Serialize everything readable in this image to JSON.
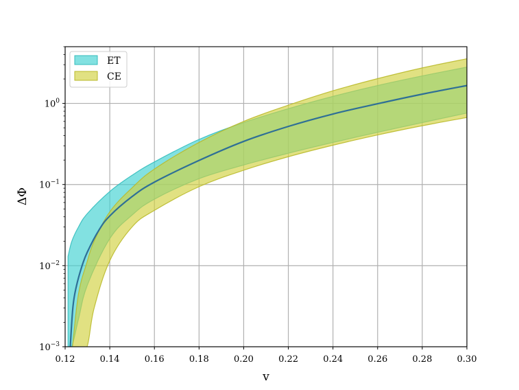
{
  "chart_data": {
    "type": "area",
    "xlabel": "v",
    "ylabel": "ΔΦ",
    "xlim": [
      0.12,
      0.3
    ],
    "ylim": [
      0.001,
      5
    ],
    "yscale": "log",
    "grid": true,
    "legend_position": "top-left",
    "x_ticks": [
      "0.12",
      "0.14",
      "0.16",
      "0.18",
      "0.20",
      "0.22",
      "0.24",
      "0.26",
      "0.28",
      "0.30"
    ],
    "y_ticks": [
      {
        "mant": "10",
        "exp": "−3",
        "value": 0.001
      },
      {
        "mant": "10",
        "exp": "−2",
        "value": 0.01
      },
      {
        "mant": "10",
        "exp": "−1",
        "value": 0.1
      },
      {
        "mant": "10",
        "exp": "0",
        "value": 1
      }
    ],
    "colors": {
      "et_fill": "#3fd1d1",
      "et_edge": "#34bcbc",
      "ce_fill": "#d1d13f",
      "ce_edge": "#b9b92a",
      "central_line": "#2e6f96"
    },
    "series": [
      {
        "name": "ET",
        "kind": "band",
        "x": [
          0.1213,
          0.123,
          0.126,
          0.13,
          0.14,
          0.15,
          0.16,
          0.18,
          0.2,
          0.22,
          0.24,
          0.26,
          0.28,
          0.3
        ],
        "lower": [
          0.001,
          0.001,
          0.0022,
          0.0058,
          0.0215,
          0.042,
          0.066,
          0.118,
          0.174,
          0.243,
          0.33,
          0.44,
          0.58,
          0.76
        ],
        "upper": [
          0.013,
          0.02,
          0.03,
          0.044,
          0.082,
          0.13,
          0.19,
          0.36,
          0.58,
          0.86,
          1.22,
          1.66,
          2.18,
          2.8
        ]
      },
      {
        "name": "CE",
        "kind": "band",
        "x": [
          0.1233,
          0.126,
          0.1298,
          0.133,
          0.14,
          0.15,
          0.16,
          0.18,
          0.2,
          0.22,
          0.24,
          0.26,
          0.28,
          0.3
        ],
        "lower": [
          0.001,
          0.001,
          0.001,
          0.003,
          0.0115,
          0.03,
          0.048,
          0.094,
          0.15,
          0.22,
          0.305,
          0.408,
          0.53,
          0.67
        ],
        "upper": [
          0.001,
          0.0045,
          0.011,
          0.02,
          0.046,
          0.091,
          0.155,
          0.33,
          0.6,
          0.95,
          1.43,
          2.02,
          2.74,
          3.55
        ]
      },
      {
        "name": "",
        "kind": "line",
        "x": [
          0.1223,
          0.1235,
          0.125,
          0.1275,
          0.13,
          0.135,
          0.14,
          0.15,
          0.16,
          0.18,
          0.2,
          0.22,
          0.24,
          0.26,
          0.28,
          0.3
        ],
        "y": [
          0.001,
          0.0031,
          0.0055,
          0.0098,
          0.0148,
          0.027,
          0.041,
          0.071,
          0.107,
          0.198,
          0.34,
          0.52,
          0.74,
          0.99,
          1.3,
          1.66
        ]
      }
    ]
  }
}
